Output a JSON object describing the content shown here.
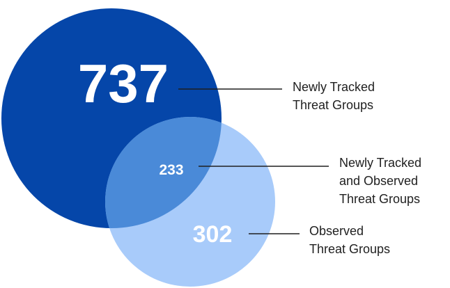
{
  "colors": {
    "newly_tracked_circle": "#0546a9",
    "observed_circle": "#a8cbfa",
    "overlap": "#4a8ad8",
    "number_text": "#ffffff",
    "label_text": "#1f1f1f",
    "leader_line": "#1f1f1f"
  },
  "sets": {
    "newly_tracked": {
      "value": "737",
      "label_line1": "Newly Tracked",
      "label_line2": "Threat Groups"
    },
    "overlap": {
      "value": "233",
      "label_line1": "Newly Tracked",
      "label_line2": "and Observed",
      "label_line3": "Threat Groups"
    },
    "observed": {
      "value": "302",
      "label_line1": "Observed",
      "label_line2": "Threat Groups"
    }
  }
}
